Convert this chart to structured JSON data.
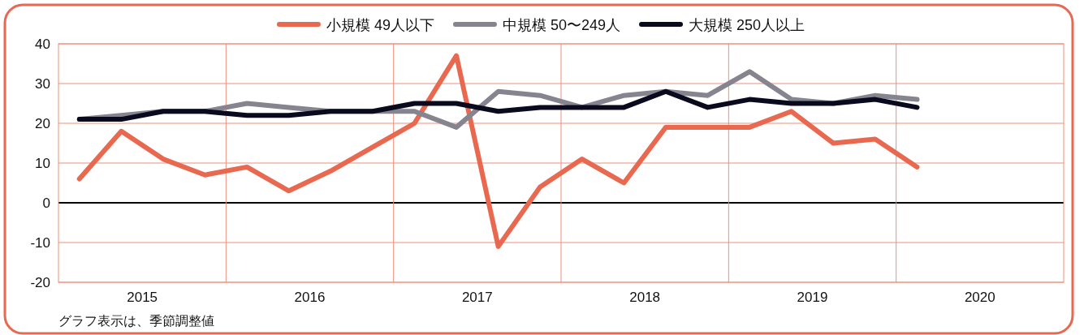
{
  "chart_data": {
    "type": "line",
    "x": [
      2015.125,
      2015.375,
      2015.625,
      2015.875,
      2016.125,
      2016.375,
      2016.625,
      2016.875,
      2017.125,
      2017.375,
      2017.625,
      2017.875,
      2018.125,
      2018.375,
      2018.625,
      2018.875,
      2019.125,
      2019.375,
      2019.625,
      2019.875,
      2020.125
    ],
    "series": [
      {
        "name": "小規模 49人以下",
        "color": "#e8694f",
        "values": [
          6,
          18,
          11,
          7,
          9,
          3,
          8,
          14,
          20,
          37,
          -11,
          4,
          11,
          5,
          19,
          19,
          19,
          23,
          15,
          16,
          9
        ]
      },
      {
        "name": "中規模 50〜249人",
        "color": "#85848f",
        "values": [
          21,
          22,
          23,
          23,
          25,
          24,
          23,
          23,
          23,
          19,
          28,
          27,
          24,
          27,
          28,
          27,
          33,
          26,
          25,
          27,
          26
        ]
      },
      {
        "name": "大規模 250人以上",
        "color": "#0a0a1f",
        "values": [
          21,
          21,
          23,
          23,
          22,
          22,
          23,
          23,
          25,
          25,
          23,
          24,
          24,
          24,
          28,
          24,
          26,
          25,
          25,
          26,
          24
        ]
      }
    ],
    "xlim": [
      2015,
      2021
    ],
    "xticks": [
      {
        "value": 2015.5,
        "label": "2015"
      },
      {
        "value": 2016.5,
        "label": "2016"
      },
      {
        "value": 2017.5,
        "label": "2017"
      },
      {
        "value": 2018.5,
        "label": "2018"
      },
      {
        "value": 2019.5,
        "label": "2019"
      },
      {
        "value": 2020.5,
        "label": "2020"
      }
    ],
    "ylim": [
      -20,
      40
    ],
    "yticks": [
      -20,
      -10,
      0,
      10,
      20,
      30,
      40
    ],
    "grid": "y",
    "ref_lines": [
      {
        "axis": "y",
        "value": 0,
        "color": "#000000"
      },
      {
        "axis": "x",
        "value": 2016,
        "color": "#ef8f7a"
      },
      {
        "axis": "x",
        "value": 2017,
        "color": "#ef8f7a"
      },
      {
        "axis": "x",
        "value": 2018,
        "color": "#ef8f7a"
      },
      {
        "axis": "x",
        "value": 2019,
        "color": "#ef8f7a"
      },
      {
        "axis": "x",
        "value": 2020,
        "color": "#ef8f7a"
      }
    ],
    "legend": "top",
    "marker": "none",
    "line_style": "solid",
    "annotations": [
      "グラフ表示は、季節調整値"
    ]
  }
}
